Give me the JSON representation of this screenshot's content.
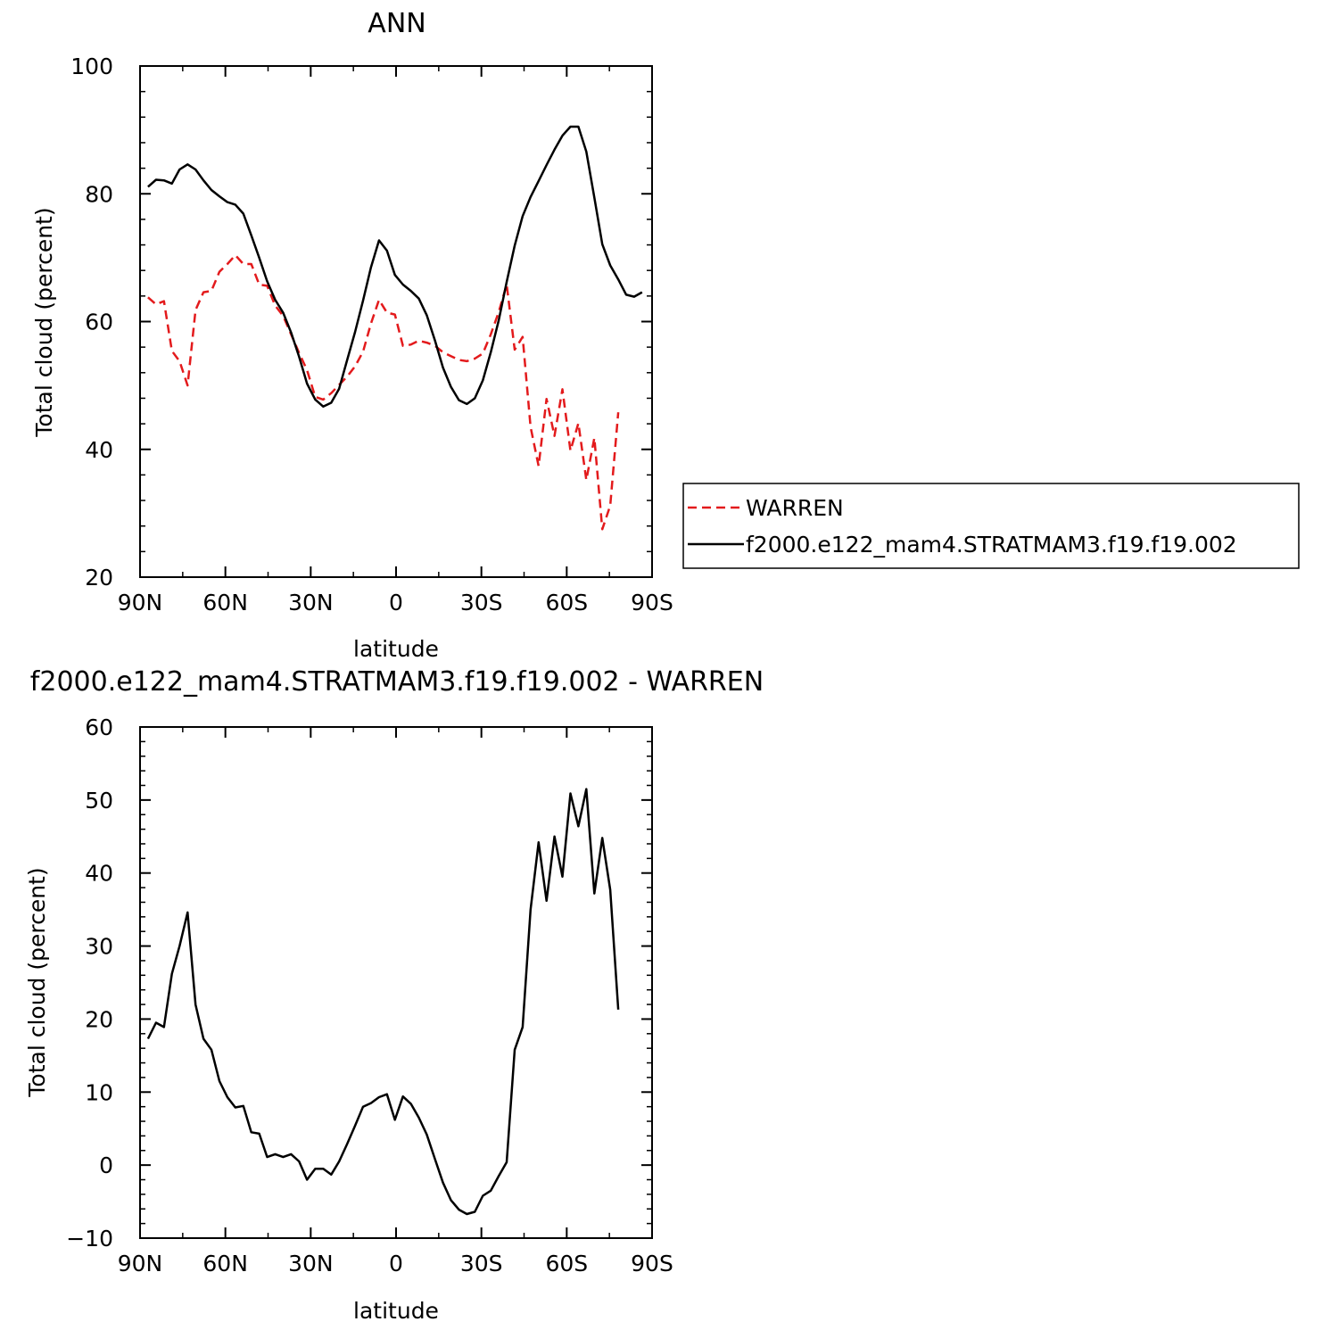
{
  "chart_data": [
    {
      "type": "line",
      "title": "ANN",
      "xlabel": "latitude",
      "ylabel": "Total cloud (percent)",
      "xlim": [
        -90,
        90
      ],
      "ylim": [
        20,
        100
      ],
      "x_ticks": [
        {
          "value": -90,
          "label": "90N"
        },
        {
          "value": -60,
          "label": "60N"
        },
        {
          "value": -30,
          "label": "30N"
        },
        {
          "value": 0,
          "label": "0"
        },
        {
          "value": 30,
          "label": "30S"
        },
        {
          "value": 60,
          "label": "60S"
        },
        {
          "value": 90,
          "label": "90S"
        }
      ],
      "y_ticks": [
        20,
        40,
        60,
        80,
        100
      ],
      "legend": {
        "placement": "right",
        "entries": [
          "WARREN",
          "f2000.e122_mam4.STRATMAM3.f19.f19.002"
        ]
      },
      "series": [
        {
          "name": "WARREN",
          "color": "#e31a1c",
          "dash": true,
          "x": [
            -87.2,
            -84.4,
            -81.6,
            -78.8,
            -76.1,
            -73.3,
            -70.5,
            -67.7,
            -64.9,
            -62.1,
            -59.3,
            -56.5,
            -53.7,
            -50.9,
            -48.1,
            -45.3,
            -42.5,
            -39.7,
            -36.9,
            -34.1,
            -31.3,
            -28.4,
            -25.6,
            -22.8,
            -20.0,
            -17.2,
            -14.4,
            -11.6,
            -8.8,
            -6.0,
            -3.2,
            -0.4,
            2.4,
            5.2,
            8.0,
            10.8,
            13.7,
            16.5,
            19.3,
            22.1,
            24.9,
            27.7,
            30.5,
            33.3,
            36.1,
            38.9,
            41.7,
            44.5,
            47.3,
            50.1,
            52.9,
            55.7,
            58.5,
            61.3,
            64.1,
            66.9,
            69.7,
            72.5,
            75.3,
            78.1
          ],
          "values": [
            63.8,
            62.7,
            63.2,
            55.4,
            53.8,
            50.0,
            61.8,
            64.6,
            64.8,
            67.8,
            69.0,
            70.4,
            69.0,
            69.0,
            65.8,
            65.6,
            62.5,
            60.9,
            58.0,
            55.1,
            52.4,
            48.2,
            47.8,
            48.8,
            50.1,
            51.4,
            53.0,
            55.3,
            59.7,
            63.4,
            61.4,
            61.1,
            56.2,
            56.4,
            57.0,
            56.7,
            56.2,
            55.2,
            54.6,
            54.0,
            53.8,
            54.2,
            55.0,
            58.0,
            61.5,
            65.8,
            55.6,
            57.6,
            43.5,
            37.4,
            47.9,
            42.1,
            49.4,
            39.8,
            44.1,
            35.2,
            41.8,
            27.5,
            31.2,
            45.8
          ]
        },
        {
          "name": "f2000.e122_mam4.STRATMAM3.f19.f19.002",
          "color": "#000000",
          "dash": false,
          "x": [
            -87.2,
            -84.4,
            -81.6,
            -78.8,
            -76.1,
            -73.3,
            -70.5,
            -67.7,
            -64.9,
            -62.1,
            -59.3,
            -56.5,
            -53.7,
            -50.9,
            -48.1,
            -45.3,
            -42.5,
            -39.7,
            -36.9,
            -34.1,
            -31.3,
            -28.4,
            -25.6,
            -22.8,
            -20.0,
            -17.2,
            -14.4,
            -11.6,
            -8.8,
            -6.0,
            -3.2,
            -0.4,
            2.4,
            5.2,
            8.0,
            10.8,
            13.7,
            16.5,
            19.3,
            22.1,
            24.9,
            27.7,
            30.5,
            33.3,
            36.1,
            38.9,
            41.7,
            44.5,
            47.3,
            50.1,
            52.9,
            55.7,
            58.5,
            61.3,
            64.1,
            66.9,
            69.7,
            72.5,
            75.3,
            78.1,
            80.9,
            83.7,
            86.5
          ],
          "values": [
            81.1,
            82.2,
            82.1,
            81.6,
            83.8,
            84.6,
            83.8,
            82.1,
            80.6,
            79.6,
            78.7,
            78.3,
            76.9,
            73.5,
            70.0,
            66.3,
            63.4,
            61.4,
            58.3,
            54.5,
            50.3,
            47.8,
            46.7,
            47.3,
            49.5,
            54.0,
            58.4,
            63.3,
            68.5,
            72.7,
            71.1,
            67.3,
            65.8,
            64.8,
            63.6,
            61.0,
            57.0,
            52.8,
            49.8,
            47.7,
            47.1,
            48.0,
            50.8,
            55.2,
            60.2,
            66.2,
            71.9,
            76.5,
            79.5,
            82.0,
            84.5,
            86.9,
            89.1,
            90.5,
            90.5,
            86.6,
            79.4,
            72.1,
            68.8,
            66.6,
            64.2,
            63.9,
            64.6
          ]
        }
      ]
    },
    {
      "type": "line",
      "title": "f2000.e122_mam4.STRATMAM3.f19.f19.002 - WARREN",
      "xlabel": "latitude",
      "ylabel": "Total cloud (percent)",
      "xlim": [
        -90,
        90
      ],
      "ylim": [
        -10,
        60
      ],
      "x_ticks": [
        {
          "value": -90,
          "label": "90N"
        },
        {
          "value": -60,
          "label": "60N"
        },
        {
          "value": -30,
          "label": "30N"
        },
        {
          "value": 0,
          "label": "0"
        },
        {
          "value": 30,
          "label": "30S"
        },
        {
          "value": 60,
          "label": "60S"
        },
        {
          "value": 90,
          "label": "90S"
        }
      ],
      "y_ticks": [
        -10,
        0,
        10,
        20,
        30,
        40,
        50,
        60
      ],
      "series": [
        {
          "color": "#000000",
          "dash": false,
          "x": [
            -87.2,
            -84.4,
            -81.6,
            -78.8,
            -76.1,
            -73.3,
            -70.5,
            -67.7,
            -64.9,
            -62.1,
            -59.3,
            -56.5,
            -53.7,
            -50.9,
            -48.1,
            -45.3,
            -42.5,
            -39.7,
            -36.9,
            -34.1,
            -31.3,
            -28.4,
            -25.6,
            -22.8,
            -20.0,
            -17.2,
            -14.4,
            -11.6,
            -8.8,
            -6.0,
            -3.2,
            -0.4,
            2.4,
            5.2,
            8.0,
            10.8,
            13.7,
            16.5,
            19.3,
            22.1,
            24.9,
            27.7,
            30.5,
            33.3,
            36.1,
            38.9,
            41.7,
            44.5,
            47.3,
            50.1,
            52.9,
            55.7,
            58.5,
            61.3,
            64.1,
            66.9,
            69.7,
            72.5,
            75.3,
            78.1
          ],
          "values": [
            17.3,
            19.5,
            18.9,
            26.2,
            30.0,
            34.6,
            22.0,
            17.3,
            15.8,
            11.5,
            9.3,
            7.9,
            8.1,
            4.5,
            4.3,
            1.1,
            1.5,
            1.1,
            1.5,
            0.5,
            -2.0,
            -0.5,
            -0.5,
            -1.3,
            0.5,
            2.9,
            5.4,
            8.0,
            8.5,
            9.3,
            9.7,
            6.2,
            9.4,
            8.4,
            6.5,
            4.2,
            0.8,
            -2.4,
            -4.8,
            -6.1,
            -6.7,
            -6.4,
            -4.2,
            -3.5,
            -1.5,
            0.4,
            15.8,
            18.9,
            35.0,
            44.2,
            36.2,
            45.0,
            39.5,
            50.9,
            46.4,
            51.5,
            37.2,
            44.8,
            37.7,
            21.3
          ]
        }
      ]
    }
  ]
}
